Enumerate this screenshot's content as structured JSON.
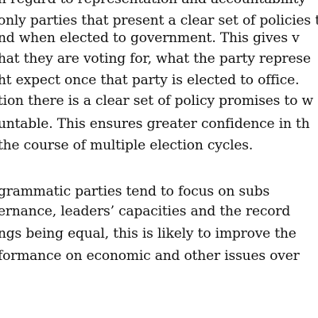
{
  "document": {
    "paragraph_1": [
      "n regard to representation and accountability",
      "only parties that present a clear set of policies th",
      "nd when elected to government. This gives v",
      "hat they are voting for, what the party represe",
      "ht expect once that party is elected to office.",
      "tion there is a clear set of policy promises to w",
      "untable. This ensures greater confidence in th",
      " the course of multiple election cycles."
    ],
    "paragraph_2": [
      "grammatic parties tend to focus on subs",
      "ernance, leaders’ capacities and the record",
      "ngs being equal, this is likely to improve the",
      "formance on economic and other issues over"
    ]
  }
}
